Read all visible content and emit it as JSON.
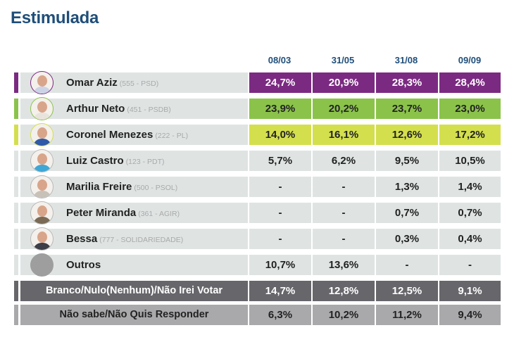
{
  "chart_data": {
    "type": "table",
    "title": "Estimulada",
    "columns": [
      "08/03",
      "31/05",
      "31/08",
      "09/09"
    ],
    "rows": [
      {
        "name": "Omar Aziz",
        "party": "(555 - PSD)",
        "values": [
          "24,7%",
          "20,9%",
          "28,3%",
          "28,4%"
        ],
        "color": "#7b2a82",
        "text_color": "#ffffff",
        "avatar": "photo"
      },
      {
        "name": "Arthur Neto",
        "party": "(451 - PSDB)",
        "values": [
          "23,9%",
          "20,2%",
          "23,7%",
          "23,0%"
        ],
        "color": "#8bc34a",
        "text_color": "#222222",
        "avatar": "photo"
      },
      {
        "name": "Coronel Menezes",
        "party": "(222 - PL)",
        "values": [
          "14,0%",
          "16,1%",
          "12,6%",
          "17,2%"
        ],
        "color": "#d4df4d",
        "text_color": "#222222",
        "avatar": "photo"
      },
      {
        "name": "Luiz Castro",
        "party": "(123 - PDT)",
        "values": [
          "5,7%",
          "6,2%",
          "9,5%",
          "10,5%"
        ],
        "color": "#dfe4e3",
        "text_color": "#222222",
        "avatar": "photo"
      },
      {
        "name": "Marilia Freire",
        "party": "(500 - PSOL)",
        "values": [
          "-",
          "-",
          "1,3%",
          "1,4%"
        ],
        "color": "#dfe4e3",
        "text_color": "#222222",
        "avatar": "photo"
      },
      {
        "name": "Peter Miranda",
        "party": "(361 - AGIR)",
        "values": [
          "-",
          "-",
          "0,7%",
          "0,7%"
        ],
        "color": "#dfe4e3",
        "text_color": "#222222",
        "avatar": "photo"
      },
      {
        "name": "Bessa",
        "party": "(777 - SOLIDARIEDADE)",
        "values": [
          "-",
          "-",
          "0,3%",
          "0,4%"
        ],
        "color": "#dfe4e3",
        "text_color": "#222222",
        "avatar": "photo"
      },
      {
        "name": "Outros",
        "party": "",
        "values": [
          "10,7%",
          "13,6%",
          "-",
          "-"
        ],
        "color": "#dfe4e3",
        "text_color": "#222222",
        "avatar": "gray"
      }
    ],
    "special_rows": [
      {
        "label": "Branco/Nulo(Nenhum)/Não Irei Votar",
        "values": [
          "14,7%",
          "12,8%",
          "12,5%",
          "9,1%"
        ],
        "color": "#67666b",
        "text_color": "#ffffff"
      },
      {
        "label": "Não sabe/Não Quis Responder",
        "values": [
          "6,3%",
          "10,2%",
          "11,2%",
          "9,4%"
        ],
        "color": "#a9a9ac",
        "text_color": "#222222"
      }
    ]
  },
  "colors": {
    "title": "#1f4e79",
    "row_bg": "#dfe4e3"
  }
}
